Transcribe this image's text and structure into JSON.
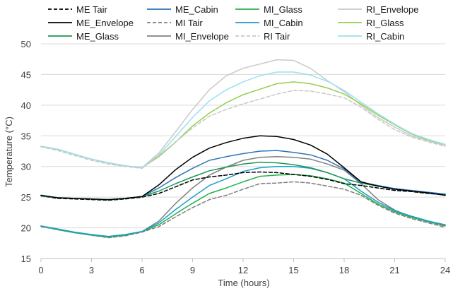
{
  "chart_data": {
    "type": "line",
    "xlabel": "Time (hours)",
    "ylabel": "Temperature (°C)",
    "xlim": [
      0,
      24
    ],
    "ylim": [
      15,
      50
    ],
    "xticks": [
      "0",
      "3",
      "6",
      "9",
      "12",
      "15",
      "18",
      "21",
      "24"
    ],
    "yticks": [
      "15",
      "20",
      "25",
      "30",
      "35",
      "40",
      "45",
      "50"
    ],
    "grid": "horizontal",
    "legend_position": "top",
    "x": [
      0,
      1,
      2,
      3,
      4,
      5,
      6,
      7,
      8,
      9,
      10,
      11,
      12,
      13,
      14,
      15,
      16,
      17,
      18,
      19,
      20,
      21,
      22,
      23,
      24
    ],
    "series": [
      {
        "name": "ME Tair",
        "color": "#000000",
        "dash": "dash",
        "values": [
          25.2,
          24.8,
          24.7,
          24.6,
          24.5,
          24.7,
          25.0,
          25.6,
          26.7,
          27.8,
          28.3,
          28.6,
          29.0,
          29.1,
          29.0,
          28.7,
          28.4,
          27.9,
          27.2,
          26.9,
          26.5,
          26.1,
          25.9,
          25.6,
          25.4
        ]
      },
      {
        "name": "ME_Envelope",
        "color": "#000000",
        "dash": "solid",
        "values": [
          25.3,
          24.9,
          24.8,
          24.7,
          24.6,
          24.8,
          25.1,
          27.0,
          29.5,
          31.5,
          33.0,
          33.9,
          34.6,
          35.0,
          34.9,
          34.4,
          33.5,
          32.0,
          29.8,
          27.5,
          26.8,
          26.3,
          26.0,
          25.7,
          25.3
        ]
      },
      {
        "name": "ME_Glass",
        "color": "#1a9850",
        "dash": "solid",
        "values": [
          25.2,
          24.9,
          24.8,
          24.7,
          24.6,
          24.8,
          25.1,
          26.0,
          27.2,
          28.3,
          29.3,
          29.9,
          30.4,
          30.7,
          30.6,
          30.3,
          29.8,
          29.0,
          28.0,
          27.3,
          26.8,
          26.3,
          26.0,
          25.7,
          25.3
        ]
      },
      {
        "name": "ME_Cabin",
        "color": "#2e75b6",
        "dash": "solid",
        "values": [
          25.3,
          24.9,
          24.8,
          24.7,
          24.6,
          24.8,
          25.1,
          26.5,
          28.2,
          29.7,
          31.0,
          31.6,
          32.1,
          32.5,
          32.6,
          32.3,
          31.9,
          31.0,
          29.6,
          27.4,
          26.9,
          26.4,
          26.1,
          25.8,
          25.5
        ]
      },
      {
        "name": "MI Tair",
        "color": "#7f7f7f",
        "dash": "dash",
        "values": [
          20.2,
          19.7,
          19.2,
          18.8,
          18.4,
          18.7,
          19.3,
          20.2,
          21.8,
          23.3,
          24.6,
          25.3,
          26.3,
          27.2,
          27.3,
          27.5,
          27.3,
          26.8,
          26.3,
          25.3,
          23.7,
          22.4,
          21.5,
          20.8,
          20.1
        ]
      },
      {
        "name": "MI_Envelope",
        "color": "#808080",
        "dash": "solid",
        "values": [
          20.3,
          19.8,
          19.3,
          18.9,
          18.6,
          18.9,
          19.4,
          21.1,
          24.0,
          26.5,
          28.6,
          29.9,
          31.0,
          31.5,
          31.6,
          31.5,
          31.2,
          30.4,
          29.4,
          27.2,
          24.6,
          22.9,
          21.8,
          21.0,
          20.3
        ]
      },
      {
        "name": "MI_Glass",
        "color": "#22b14c",
        "dash": "solid",
        "values": [
          20.3,
          19.7,
          19.2,
          18.8,
          18.5,
          18.8,
          19.4,
          20.5,
          22.3,
          24.0,
          25.6,
          26.5,
          27.5,
          28.4,
          28.6,
          28.7,
          28.5,
          28.0,
          27.3,
          25.6,
          23.9,
          22.6,
          21.7,
          21.0,
          20.4
        ]
      },
      {
        "name": "MI_Cabin",
        "color": "#1c9ec9",
        "dash": "solid",
        "values": [
          20.3,
          19.8,
          19.3,
          18.9,
          18.6,
          18.9,
          19.4,
          20.8,
          23.0,
          25.0,
          26.9,
          28.0,
          29.2,
          29.8,
          30.0,
          30.0,
          29.7,
          29.0,
          28.0,
          26.0,
          24.2,
          22.8,
          21.9,
          21.1,
          20.5
        ]
      },
      {
        "name": "RI Tair",
        "color": "#c8c8c8",
        "dash": "dash",
        "values": [
          33.2,
          32.6,
          31.8,
          31.0,
          30.4,
          30.0,
          29.7,
          31.8,
          34.0,
          36.3,
          38.2,
          39.3,
          40.2,
          41.0,
          41.8,
          42.4,
          42.3,
          41.8,
          41.2,
          39.7,
          37.7,
          36.0,
          34.8,
          34.0,
          33.3
        ]
      },
      {
        "name": "RI_Envelope",
        "color": "#c9c9c9",
        "dash": "solid",
        "values": [
          33.3,
          32.8,
          32.0,
          31.2,
          30.6,
          30.1,
          29.8,
          32.2,
          35.7,
          39.3,
          42.5,
          44.8,
          46.0,
          46.7,
          47.4,
          47.3,
          46.0,
          44.0,
          42.2,
          40.0,
          38.0,
          36.4,
          35.0,
          34.2,
          33.4
        ]
      },
      {
        "name": "RI_Glass",
        "color": "#92d050",
        "dash": "solid",
        "values": [
          33.3,
          32.8,
          32.0,
          31.2,
          30.6,
          30.1,
          29.8,
          31.6,
          34.0,
          36.6,
          38.7,
          40.4,
          41.7,
          42.6,
          43.5,
          43.8,
          43.5,
          42.8,
          41.8,
          40.2,
          38.4,
          36.8,
          35.3,
          34.3,
          33.6
        ]
      },
      {
        "name": "RI_Cabin",
        "color": "#9be0f0",
        "dash": "solid",
        "values": [
          33.3,
          32.8,
          32.0,
          31.2,
          30.6,
          30.1,
          29.8,
          31.9,
          34.9,
          38.0,
          40.7,
          42.5,
          43.8,
          44.8,
          45.4,
          45.4,
          44.9,
          43.9,
          42.4,
          40.5,
          38.6,
          36.9,
          35.4,
          34.4,
          33.6
        ]
      }
    ]
  }
}
